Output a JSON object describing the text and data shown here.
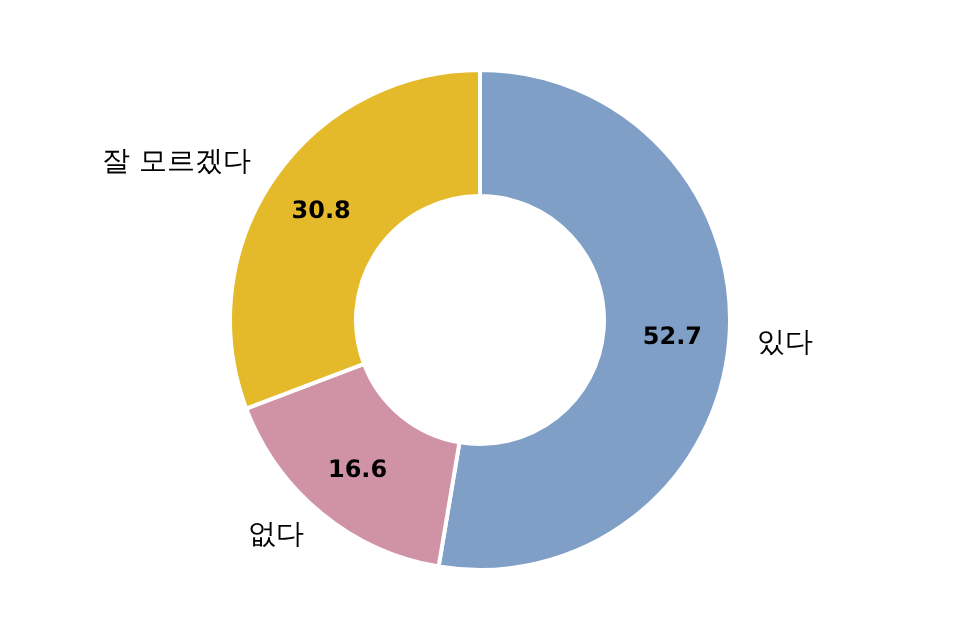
{
  "chart_data": {
    "type": "donut",
    "categories": [
      "있다",
      "없다",
      "잘 모르겠다"
    ],
    "values": [
      52.7,
      16.6,
      30.8
    ],
    "colors": [
      "#7f9fc6",
      "#d093a6",
      "#e4b92a"
    ],
    "data_labels": true,
    "legend": false
  }
}
